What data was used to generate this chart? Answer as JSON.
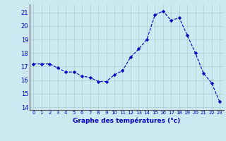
{
  "hours": [
    0,
    1,
    2,
    3,
    4,
    5,
    6,
    7,
    8,
    9,
    10,
    11,
    12,
    13,
    14,
    15,
    16,
    17,
    18,
    19,
    20,
    21,
    22,
    23
  ],
  "temperatures": [
    17.2,
    17.2,
    17.2,
    16.9,
    16.6,
    16.6,
    16.3,
    16.2,
    15.9,
    15.9,
    16.4,
    16.7,
    17.7,
    18.3,
    19.0,
    20.8,
    21.1,
    20.4,
    20.6,
    19.3,
    18.0,
    16.5,
    15.8,
    14.4
  ],
  "line_color": "#0000cc",
  "marker_color": "#0000cc",
  "bg_color": "#cce8f0",
  "grid_color": "#aacccc",
  "xlabel": "Graphe des températures (°c)",
  "xlabel_color": "#0000cc",
  "tick_color": "#0000cc",
  "axis_color": "#555555",
  "ylim": [
    13.8,
    21.6
  ],
  "yticks": [
    14,
    15,
    16,
    17,
    18,
    19,
    20,
    21
  ],
  "xlim": [
    -0.5,
    23.5
  ],
  "xticks": [
    0,
    1,
    2,
    3,
    4,
    5,
    6,
    7,
    8,
    9,
    10,
    11,
    12,
    13,
    14,
    15,
    16,
    17,
    18,
    19,
    20,
    21,
    22,
    23
  ]
}
